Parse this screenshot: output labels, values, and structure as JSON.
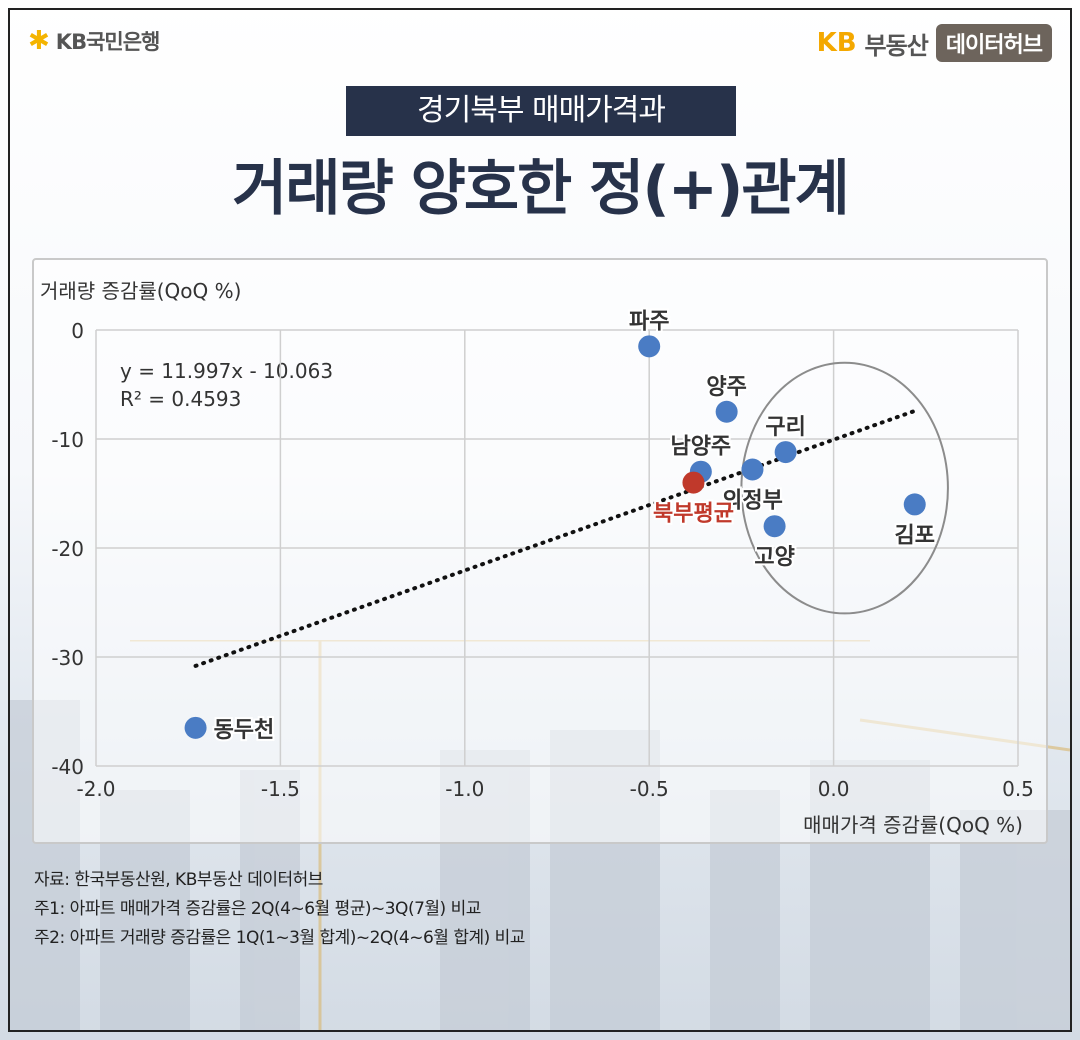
{
  "header": {
    "left_logo": "KB국민은행",
    "right_logo_kb": "KB",
    "right_logo_name": "부동산",
    "right_badge": "데이터허브"
  },
  "subtitle": "경기북부 매매가격과",
  "title": "거래량 양호한 정(+)관계",
  "chart_data": {
    "type": "scatter",
    "xlabel": "매매가격 증감률(QoQ %)",
    "ylabel": "거래량 증감률(QoQ %)",
    "xlim": [
      -2.0,
      0.5
    ],
    "ylim": [
      -40,
      0
    ],
    "xticks": [
      "-2.0",
      "-1.5",
      "-1.0",
      "-0.5",
      "0.0",
      "0.5"
    ],
    "yticks": [
      "0",
      "-10",
      "-20",
      "-30",
      "-40"
    ],
    "grid": true,
    "points": [
      {
        "label": "파주",
        "x": -0.5,
        "y": -1.5,
        "color": "#4a7cc4",
        "label_pos": "top"
      },
      {
        "label": "양주",
        "x": -0.29,
        "y": -7.5,
        "color": "#4a7cc4",
        "label_pos": "top"
      },
      {
        "label": "구리",
        "x": -0.13,
        "y": -11.2,
        "color": "#4a7cc4",
        "label_pos": "top"
      },
      {
        "label": "남양주",
        "x": -0.36,
        "y": -13.0,
        "color": "#4a7cc4",
        "label_pos": "top"
      },
      {
        "label": "의정부",
        "x": -0.22,
        "y": -12.8,
        "color": "#4a7cc4",
        "label_pos": "bottom"
      },
      {
        "label": "북부평균",
        "x": -0.38,
        "y": -14.0,
        "color": "#c0392b",
        "label_pos": "bottom",
        "label_color": "#c0392b"
      },
      {
        "label": "고양",
        "x": -0.16,
        "y": -18.0,
        "color": "#4a7cc4",
        "label_pos": "bottom"
      },
      {
        "label": "김포",
        "x": 0.22,
        "y": -16.0,
        "color": "#4a7cc4",
        "label_pos": "bottom"
      },
      {
        "label": "동두천",
        "x": -1.73,
        "y": -36.5,
        "color": "#4a7cc4",
        "label_pos": "right"
      }
    ],
    "trendline": {
      "equation": "y = 11.997x - 10.063",
      "r2": "R² = 0.4593",
      "slope": 11.997,
      "intercept": -10.063,
      "x_range": [
        -1.73,
        0.22
      ],
      "style": "dotted"
    },
    "highlight_ellipse": {
      "cx": 0.03,
      "cy": -14.5,
      "rx": 0.28,
      "ry": 11.5
    }
  },
  "source_lines": [
    "자료: 한국부동산원, KB부동산 데이터허브",
    "주1: 아파트 매매가격 증감률은 2Q(4~6월 평균)~3Q(7월) 비교",
    "주2: 아파트 거래량 증감률은 1Q(1~3월 합계)~2Q(4~6월 합계) 비교"
  ]
}
